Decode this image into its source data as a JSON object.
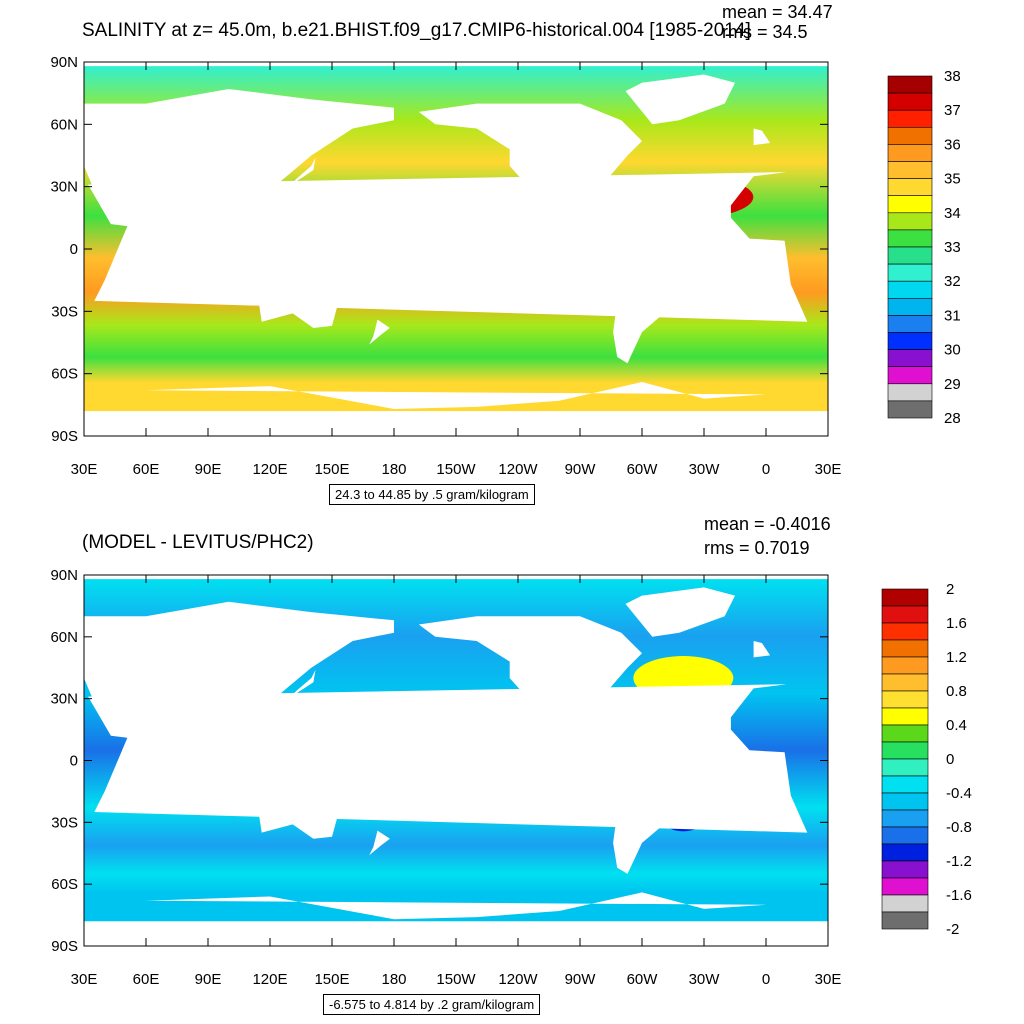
{
  "panels": [
    {
      "title": "SALINITY at z=  45.0m, b.e21.BHIST.f09_g17.CMIP6-historical.004 [1985-2014]",
      "mean_label": "mean = 34.47",
      "rms_label": "rms = 34.5",
      "range_note": "24.3 to 44.85 by .5 gram/kilogram",
      "y_ticks": [
        "90N",
        "60N",
        "30N",
        "0",
        "30S",
        "60S",
        "90S"
      ],
      "x_ticks": [
        "30E",
        "60E",
        "90E",
        "120E",
        "150E",
        "180",
        "150W",
        "120W",
        "90W",
        "60W",
        "30W",
        "0",
        "30E"
      ],
      "colorbar_labels": [
        "38",
        "37",
        "36",
        "35",
        "34",
        "33",
        "32",
        "31",
        "30",
        "29",
        "28"
      ],
      "colorbar_colors": [
        "#a50000",
        "#d40000",
        "#ff2000",
        "#f07000",
        "#ff9a20",
        "#ffbe2e",
        "#ffd830",
        "#ffff00",
        "#a8e81a",
        "#3ce040",
        "#28e08c",
        "#30f0d0",
        "#00d8f0",
        "#00b4f0",
        "#1a80f0",
        "#0030ff",
        "#8a10d0",
        "#e010d0",
        "#d2d2d2",
        "#6e6e6e"
      ]
    },
    {
      "title": "(MODEL - LEVITUS/PHC2)",
      "mean_label": "mean = -0.4016",
      "rms_label": "rms = 0.7019",
      "range_note": "-6.575 to 4.814 by .2 gram/kilogram",
      "y_ticks": [
        "90N",
        "60N",
        "30N",
        "0",
        "30S",
        "60S",
        "90S"
      ],
      "x_ticks": [
        "30E",
        "60E",
        "90E",
        "120E",
        "150E",
        "180",
        "150W",
        "120W",
        "90W",
        "60W",
        "30W",
        "0",
        "30E"
      ],
      "colorbar_labels": [
        "2",
        "1.6",
        "1.2",
        "0.8",
        "0.4",
        "0",
        "-0.4",
        "-0.8",
        "-1.2",
        "-1.6",
        "-2"
      ],
      "colorbar_colors": [
        "#b00000",
        "#e01010",
        "#ff3000",
        "#f07000",
        "#ff9a20",
        "#ffbe2e",
        "#ffe030",
        "#ffff00",
        "#5cd81a",
        "#28e060",
        "#30f0c0",
        "#00e0f0",
        "#00c4f0",
        "#1aa0f0",
        "#1a70e8",
        "#0020e0",
        "#8a10d0",
        "#e010d0",
        "#d2d2d2",
        "#6e6e6e"
      ]
    }
  ]
}
